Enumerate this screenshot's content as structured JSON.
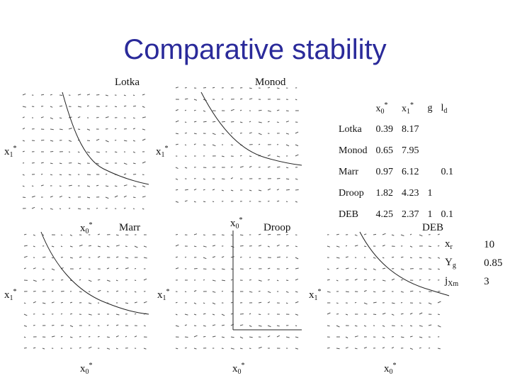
{
  "title": "Comparative stability",
  "panels": {
    "lotka": {
      "name": "Lotka",
      "x_label": "x0*",
      "y_label": "x1*"
    },
    "monod": {
      "name": "Monod",
      "x_label": "x0*",
      "y_label": "x1*"
    },
    "marr": {
      "name": "Marr",
      "x_label": "x0*",
      "y_label": "x1*"
    },
    "droop": {
      "name": "Droop",
      "x_label": "x0*",
      "y_label": "x1*"
    },
    "deb": {
      "name": "DEB",
      "x_label": "x0*",
      "y_label": "x1*"
    }
  },
  "table": {
    "headers": [
      "x0*",
      "x1*",
      "g",
      "ld"
    ],
    "rows": [
      {
        "model": "Lotka",
        "x0": "0.39",
        "x1": "8.17",
        "g": "",
        "ld": ""
      },
      {
        "model": "Monod",
        "x0": "0.65",
        "x1": "7.95",
        "g": "",
        "ld": ""
      },
      {
        "model": "Marr",
        "x0": "0.97",
        "x1": "6.12",
        "g": "",
        "ld": "0.1"
      },
      {
        "model": "Droop",
        "x0": "1.82",
        "x1": "4.23",
        "g": "1",
        "ld": ""
      },
      {
        "model": "DEB",
        "x0": "4.25",
        "x1": "2.37",
        "g": "1",
        "ld": "0.1"
      }
    ]
  },
  "deb_params": [
    {
      "name": "xr",
      "value": "10"
    },
    {
      "name": "Yg",
      "value": "0.85"
    },
    {
      "name": "jXm",
      "value": "3"
    }
  ]
}
